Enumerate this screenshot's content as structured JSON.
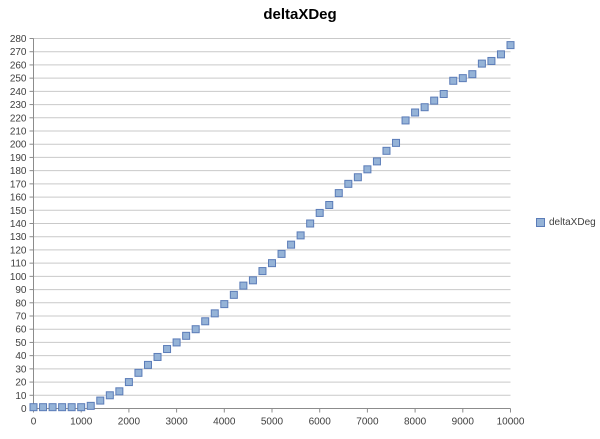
{
  "chart_data": {
    "type": "scatter",
    "title": "deltaXDeg",
    "legend": {
      "label": "deltaXDeg",
      "position": "right"
    },
    "xlabel": "",
    "ylabel": "",
    "xlim": [
      0,
      10000
    ],
    "ylim": [
      0,
      280
    ],
    "xticks": [
      0,
      1000,
      2000,
      3000,
      4000,
      5000,
      6000,
      7000,
      8000,
      9000,
      10000
    ],
    "yticks": [
      0,
      10,
      20,
      30,
      40,
      50,
      60,
      70,
      80,
      90,
      100,
      110,
      120,
      130,
      140,
      150,
      160,
      170,
      180,
      190,
      200,
      210,
      220,
      230,
      240,
      250,
      260,
      270,
      280
    ],
    "grid": "horizontal",
    "legend_position": "right",
    "marker": {
      "shape": "square",
      "size": 7,
      "fill": "#95b3d7",
      "stroke": "#5b7cb8"
    },
    "colors": {
      "background": "#ffffff",
      "gridline": "#c9c9c9",
      "axis": "#8c8c8c",
      "tick_label": "#3f3f3f",
      "title": "#000000"
    },
    "series": [
      {
        "name": "deltaXDeg",
        "x": [
          0,
          200,
          400,
          600,
          800,
          1000,
          1200,
          1400,
          1600,
          1800,
          2000,
          2200,
          2400,
          2600,
          2800,
          3000,
          3200,
          3400,
          3600,
          3800,
          4000,
          4200,
          4400,
          4600,
          4800,
          5000,
          5200,
          5400,
          5600,
          5800,
          6000,
          6200,
          6400,
          6600,
          6800,
          7000,
          7200,
          7400,
          7600,
          7800,
          8000,
          8200,
          8400,
          8600,
          8800,
          9000,
          9200,
          9400,
          9600,
          9800,
          10000
        ],
        "y": [
          1,
          1,
          1,
          1,
          1,
          1,
          2,
          6,
          10,
          13,
          20,
          27,
          33,
          39,
          45,
          50,
          55,
          60,
          66,
          72,
          79,
          86,
          93,
          97,
          104,
          110,
          117,
          124,
          131,
          140,
          148,
          154,
          163,
          170,
          175,
          181,
          187,
          195,
          201,
          218,
          224,
          228,
          233,
          238,
          248,
          250,
          253,
          261,
          263,
          268,
          275
        ]
      }
    ]
  }
}
